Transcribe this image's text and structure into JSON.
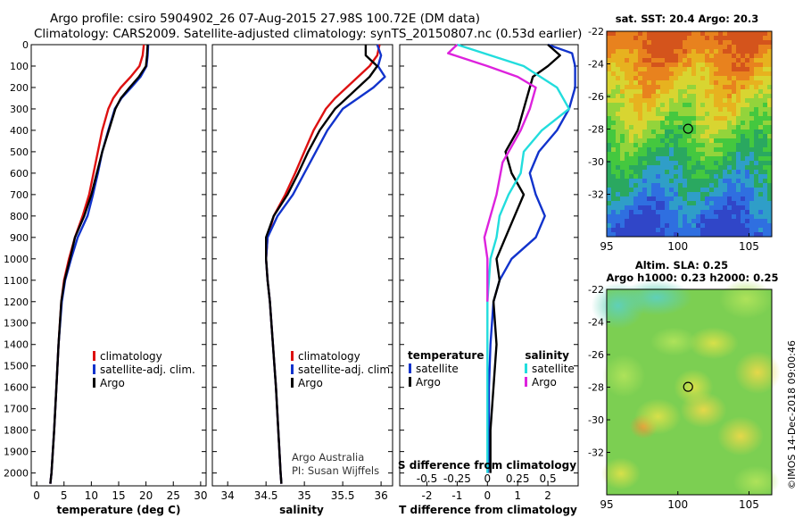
{
  "header": {
    "title_line1": "Argo profile: csiro 5904902_26 07-Aug-2015 27.98S 100.72E (DM data)",
    "title_line2": "Climatology: CARS2009. Satellite-adjusted climatology: synTS_20150807.nc (0.53d earlier)"
  },
  "colors": {
    "climatology": "#dd1111",
    "satellite": "#1133cc",
    "argo": "#000000",
    "sat_salinity": "#22dddd",
    "argo_salinity": "#dd22dd"
  },
  "chart_data": [
    {
      "type": "line",
      "panel": "temperature",
      "xlabel": "temperature (deg C)",
      "xlim": [
        -1,
        31
      ],
      "xticks": [
        0,
        5,
        10,
        15,
        20,
        25,
        30
      ],
      "ylim": [
        0,
        2060
      ],
      "yticks": [
        0,
        100,
        200,
        300,
        400,
        500,
        600,
        700,
        800,
        900,
        1000,
        1100,
        1200,
        1300,
        1400,
        1500,
        1600,
        1700,
        1800,
        1900,
        2000
      ],
      "legend": [
        "climatology",
        "satellite-adj. clim.",
        "Argo"
      ],
      "series": [
        {
          "name": "climatology",
          "color": "#dd1111",
          "points": [
            [
              19.6,
              0
            ],
            [
              19.4,
              50
            ],
            [
              18.8,
              100
            ],
            [
              17.2,
              150
            ],
            [
              15.4,
              200
            ],
            [
              14.0,
              250
            ],
            [
              13.1,
              300
            ],
            [
              12.0,
              400
            ],
            [
              11.2,
              500
            ],
            [
              10.4,
              600
            ],
            [
              9.6,
              700
            ],
            [
              8.4,
              800
            ],
            [
              7.0,
              900
            ],
            [
              5.9,
              1000
            ],
            [
              5.0,
              1100
            ],
            [
              4.5,
              1200
            ],
            [
              4.0,
              1400
            ],
            [
              3.6,
              1600
            ],
            [
              3.2,
              1800
            ],
            [
              2.7,
              2000
            ],
            [
              2.5,
              2050
            ]
          ]
        },
        {
          "name": "satellite",
          "color": "#1133cc",
          "points": [
            [
              20.4,
              0
            ],
            [
              20.3,
              50
            ],
            [
              20.1,
              100
            ],
            [
              19.0,
              150
            ],
            [
              17.3,
              200
            ],
            [
              15.5,
              250
            ],
            [
              14.3,
              300
            ],
            [
              13.1,
              400
            ],
            [
              12.0,
              500
            ],
            [
              11.2,
              600
            ],
            [
              10.3,
              700
            ],
            [
              9.3,
              800
            ],
            [
              7.5,
              900
            ],
            [
              6.3,
              1000
            ],
            [
              5.2,
              1100
            ],
            [
              4.6,
              1200
            ],
            [
              4.0,
              1400
            ],
            [
              3.6,
              1600
            ],
            [
              3.2,
              1800
            ],
            [
              2.7,
              2000
            ],
            [
              2.5,
              2050
            ]
          ]
        },
        {
          "name": "Argo",
          "color": "#000000",
          "points": [
            [
              20.3,
              0
            ],
            [
              20.2,
              50
            ],
            [
              20.0,
              100
            ],
            [
              18.7,
              150
            ],
            [
              17.0,
              200
            ],
            [
              15.4,
              250
            ],
            [
              14.4,
              300
            ],
            [
              13.2,
              400
            ],
            [
              12.0,
              500
            ],
            [
              11.0,
              600
            ],
            [
              10.0,
              700
            ],
            [
              8.7,
              800
            ],
            [
              7.0,
              900
            ],
            [
              6.1,
              1000
            ],
            [
              5.1,
              1100
            ],
            [
              4.5,
              1200
            ],
            [
              4.0,
              1400
            ],
            [
              3.6,
              1600
            ],
            [
              3.2,
              1800
            ],
            [
              2.7,
              2000
            ],
            [
              2.5,
              2050
            ]
          ]
        }
      ]
    },
    {
      "type": "line",
      "panel": "salinity",
      "xlabel": "salinity",
      "xlim": [
        33.8,
        36.15
      ],
      "xticks": [
        34,
        34.5,
        35,
        35.5,
        36
      ],
      "xticklabels": [
        "34",
        "34.5",
        "35",
        "35.5",
        "36"
      ],
      "ylim": [
        0,
        2060
      ],
      "legend": [
        "climatology",
        "satellite-adj. clim.",
        "Argo"
      ],
      "annotation": [
        "Argo Australia",
        "PI: Susan Wijffels"
      ],
      "series": [
        {
          "name": "climatology",
          "color": "#dd1111",
          "points": [
            [
              35.98,
              0
            ],
            [
              35.95,
              50
            ],
            [
              35.85,
              100
            ],
            [
              35.7,
              150
            ],
            [
              35.55,
              200
            ],
            [
              35.4,
              250
            ],
            [
              35.28,
              300
            ],
            [
              35.12,
              400
            ],
            [
              35.0,
              500
            ],
            [
              34.88,
              600
            ],
            [
              34.75,
              700
            ],
            [
              34.6,
              800
            ],
            [
              34.52,
              900
            ],
            [
              34.5,
              1000
            ],
            [
              34.52,
              1100
            ],
            [
              34.55,
              1200
            ],
            [
              34.59,
              1400
            ],
            [
              34.63,
              1600
            ],
            [
              34.66,
              1800
            ],
            [
              34.69,
              2000
            ],
            [
              34.7,
              2050
            ]
          ]
        },
        {
          "name": "satellite",
          "color": "#1133cc",
          "points": [
            [
              35.95,
              0
            ],
            [
              36.0,
              50
            ],
            [
              35.96,
              100
            ],
            [
              36.05,
              150
            ],
            [
              35.9,
              200
            ],
            [
              35.7,
              250
            ],
            [
              35.5,
              300
            ],
            [
              35.3,
              400
            ],
            [
              35.15,
              500
            ],
            [
              35.0,
              600
            ],
            [
              34.85,
              700
            ],
            [
              34.65,
              800
            ],
            [
              34.52,
              900
            ],
            [
              34.5,
              1000
            ],
            [
              34.52,
              1100
            ],
            [
              34.55,
              1200
            ],
            [
              34.59,
              1400
            ],
            [
              34.63,
              1600
            ],
            [
              34.66,
              1800
            ],
            [
              34.69,
              2000
            ],
            [
              34.7,
              2050
            ]
          ]
        },
        {
          "name": "Argo",
          "color": "#000000",
          "points": [
            [
              35.8,
              0
            ],
            [
              35.8,
              50
            ],
            [
              35.95,
              100
            ],
            [
              35.85,
              150
            ],
            [
              35.7,
              200
            ],
            [
              35.55,
              250
            ],
            [
              35.4,
              300
            ],
            [
              35.2,
              400
            ],
            [
              35.05,
              500
            ],
            [
              34.92,
              600
            ],
            [
              34.78,
              700
            ],
            [
              34.6,
              800
            ],
            [
              34.5,
              900
            ],
            [
              34.5,
              1000
            ],
            [
              34.52,
              1100
            ],
            [
              34.55,
              1200
            ],
            [
              34.59,
              1400
            ],
            [
              34.63,
              1600
            ],
            [
              34.66,
              1800
            ],
            [
              34.69,
              2000
            ],
            [
              34.7,
              2050
            ]
          ]
        }
      ]
    },
    {
      "type": "line",
      "panel": "difference",
      "xlabel": "T difference from climatology",
      "xlim": [
        -2.9,
        3.0
      ],
      "xticks": [
        -2,
        -1,
        0,
        1,
        2
      ],
      "x2label": "S difference from climatology",
      "x2ticklabels": [
        {
          "label": "-0.5",
          "at": -2
        },
        {
          "label": "-0.25",
          "at": -1
        },
        {
          "label": "0",
          "at": 0
        },
        {
          "label": "0.25",
          "at": 1
        },
        {
          "label": "0.5",
          "at": 2
        }
      ],
      "ylim": [
        0,
        2060
      ],
      "legend_temperature": {
        "title": "temperature",
        "items": [
          "satellite",
          "Argo"
        ]
      },
      "legend_salinity": {
        "title": "salinity",
        "items": [
          "satellite",
          "Argo"
        ]
      },
      "series": [
        {
          "name": "temperature satellite",
          "color": "#1133cc",
          "points": [
            [
              2.0,
              0
            ],
            [
              2.8,
              40
            ],
            [
              2.9,
              100
            ],
            [
              2.9,
              200
            ],
            [
              2.7,
              300
            ],
            [
              2.3,
              400
            ],
            [
              1.7,
              500
            ],
            [
              1.4,
              600
            ],
            [
              1.6,
              700
            ],
            [
              1.9,
              800
            ],
            [
              1.6,
              900
            ],
            [
              0.8,
              1000
            ],
            [
              0.4,
              1100
            ],
            [
              0.2,
              1200
            ],
            [
              0.1,
              1400
            ],
            [
              0.05,
              1600
            ],
            [
              0.05,
              1800
            ],
            [
              0.02,
              2000
            ]
          ]
        },
        {
          "name": "temperature Argo",
          "color": "#000000",
          "points": [
            [
              2.0,
              0
            ],
            [
              2.4,
              50
            ],
            [
              2.0,
              100
            ],
            [
              1.5,
              150
            ],
            [
              1.4,
              200
            ],
            [
              1.2,
              300
            ],
            [
              1.0,
              400
            ],
            [
              0.6,
              500
            ],
            [
              0.8,
              600
            ],
            [
              1.2,
              700
            ],
            [
              0.9,
              800
            ],
            [
              0.6,
              900
            ],
            [
              0.3,
              1000
            ],
            [
              0.4,
              1100
            ],
            [
              0.2,
              1200
            ],
            [
              0.3,
              1400
            ],
            [
              0.2,
              1600
            ],
            [
              0.1,
              1800
            ],
            [
              0.1,
              2000
            ]
          ]
        },
        {
          "name": "salinity satellite",
          "color": "#22dddd",
          "points": [
            [
              -1.0,
              0
            ],
            [
              0.1,
              50
            ],
            [
              1.2,
              100
            ],
            [
              2.3,
              200
            ],
            [
              2.7,
              300
            ],
            [
              1.8,
              400
            ],
            [
              1.2,
              500
            ],
            [
              1.1,
              600
            ],
            [
              0.7,
              700
            ],
            [
              0.4,
              800
            ],
            [
              0.3,
              900
            ],
            [
              0.1,
              1000
            ],
            [
              0.0,
              1200
            ],
            [
              0.0,
              2000
            ]
          ]
        },
        {
          "name": "salinity Argo",
          "color": "#dd22dd",
          "points": [
            [
              -1.0,
              0
            ],
            [
              -1.3,
              40
            ],
            [
              0.0,
              100
            ],
            [
              1.0,
              150
            ],
            [
              1.6,
              200
            ],
            [
              1.4,
              300
            ],
            [
              1.1,
              400
            ],
            [
              0.9,
              450
            ],
            [
              0.5,
              550
            ],
            [
              0.3,
              700
            ],
            [
              0.1,
              800
            ],
            [
              -0.1,
              900
            ],
            [
              0.0,
              1000
            ],
            [
              0.0,
              1200
            ]
          ]
        }
      ]
    },
    {
      "type": "heatmap",
      "panel": "SST map",
      "title": "sat. SST: 20.4 Argo: 20.3",
      "xlim": [
        95,
        106.6
      ],
      "ylim": [
        -34.6,
        -22
      ],
      "xticks": [
        95,
        100,
        105
      ],
      "yticks": [
        -22,
        -24,
        -26,
        -28,
        -30,
        -32
      ],
      "marker": {
        "lon": 100.72,
        "lat": -27.98
      }
    },
    {
      "type": "heatmap",
      "panel": "SLA map",
      "title": "Altim. SLA: 0.25",
      "subtitle": "Argo h1000: 0.23 h2000: 0.25",
      "xlim": [
        95,
        106.6
      ],
      "ylim": [
        -34.6,
        -22
      ],
      "xticks": [
        95,
        100,
        105
      ],
      "yticks": [
        -22,
        -24,
        -26,
        -28,
        -30,
        -32
      ],
      "marker": {
        "lon": 100.72,
        "lat": -27.98
      }
    }
  ],
  "footer": {
    "imos_stamp": "©IMOS 14-Dec-2018 09:00:46"
  }
}
